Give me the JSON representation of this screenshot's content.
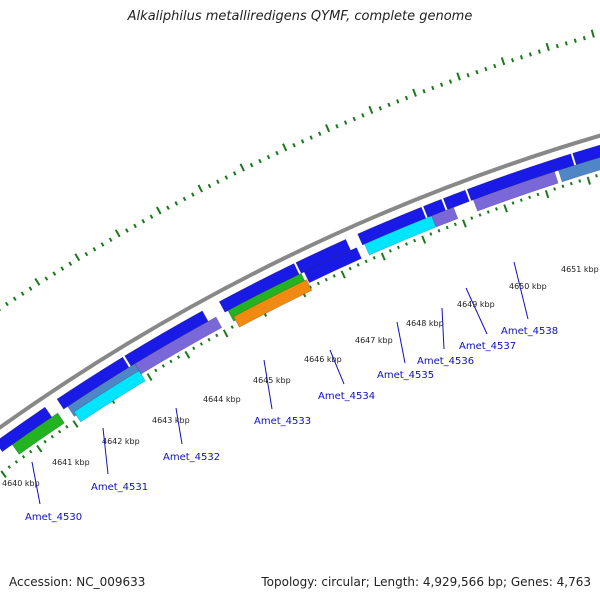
{
  "title": "Alkaliphilus metalliredigens QYMF, complete genome",
  "footer": {
    "accession": "Accession: NC_009633",
    "summary": "Topology: circular; Length: 4,929,566 bp; Genes: 4,763"
  },
  "colors": {
    "backbone": "#888888",
    "ticks": "#1a7a1a",
    "gene_forward": "#1a1ae6",
    "gene_reverse_purple": "#7b68d8",
    "gene_cyan": "#00e5ff",
    "gene_steelblue": "#4f86c6",
    "gene_green": "#22b222",
    "gene_orange": "#f08a10",
    "label": "#1010c0"
  },
  "scale_labels": [
    "4640 kbp",
    "4641 kbp",
    "4642 kbp",
    "4643 kbp",
    "4644 kbp",
    "4645 kbp",
    "4646 kbp",
    "4647 kbp",
    "4648 kbp",
    "4649 kbp",
    "4650 kbp",
    "4651 kbp"
  ],
  "gene_labels": [
    "Amet_4530",
    "Amet_4531",
    "Amet_4532",
    "Amet_4533",
    "Amet_4534",
    "Amet_4535",
    "Amet_4536",
    "Amet_4537",
    "Amet_4538"
  ],
  "features": [
    {
      "track": "forward",
      "color_key": "gene_forward"
    },
    {
      "track": "forward",
      "color_key": "gene_forward"
    },
    {
      "track": "forward",
      "color_key": "gene_forward"
    },
    {
      "track": "forward",
      "color_key": "gene_forward"
    },
    {
      "track": "forward",
      "color_key": "gene_forward"
    },
    {
      "track": "forward",
      "color_key": "gene_forward"
    },
    {
      "track": "forward",
      "color_key": "gene_forward"
    },
    {
      "track": "forward",
      "color_key": "gene_forward"
    },
    {
      "track": "forward",
      "color_key": "gene_forward"
    },
    {
      "track": "forward",
      "color_key": "gene_forward"
    },
    {
      "track": "forward",
      "color_key": "gene_forward"
    },
    {
      "track": "reverse",
      "color_key": "gene_green"
    },
    {
      "track": "reverse",
      "color_key": "gene_steelblue"
    },
    {
      "track": "reverse",
      "color_key": "gene_reverse_purple"
    },
    {
      "track": "reverse",
      "color_key": "gene_green"
    },
    {
      "track": "reverse",
      "color_key": "gene_forward"
    },
    {
      "track": "reverse",
      "color_key": "gene_cyan"
    },
    {
      "track": "reverse",
      "color_key": "gene_reverse_purple"
    },
    {
      "track": "reverse",
      "color_key": "gene_reverse_purple"
    },
    {
      "track": "reverse",
      "color_key": "gene_steelblue"
    },
    {
      "track": "reverse2",
      "color_key": "gene_cyan"
    },
    {
      "track": "reverse2",
      "color_key": "gene_orange"
    }
  ]
}
